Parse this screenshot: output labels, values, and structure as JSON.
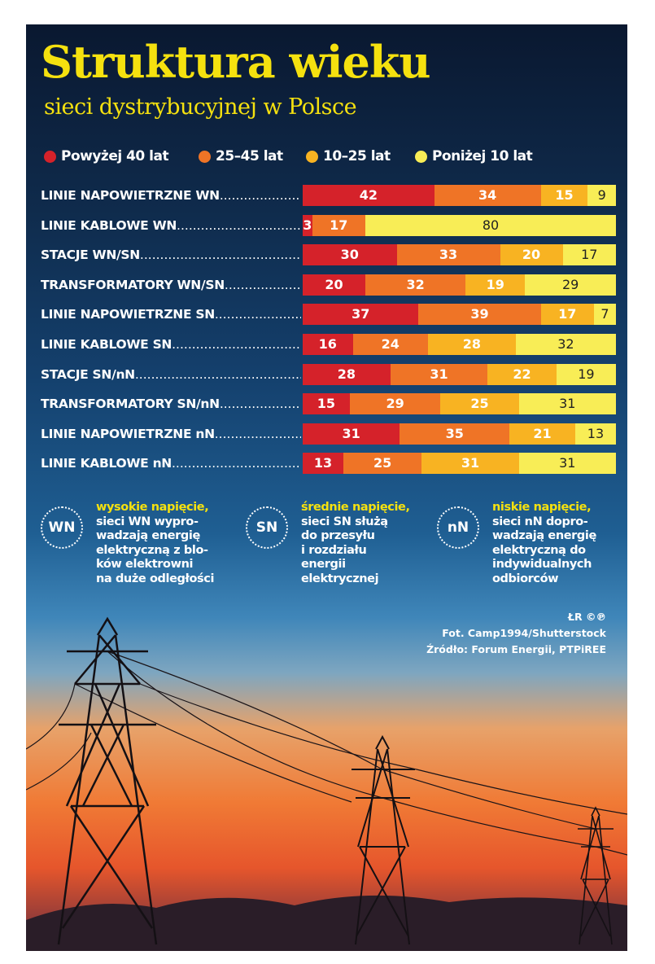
{
  "poster": {
    "title": "Struktura wieku",
    "subtitle": "sieci dystrybucyjnej w Polsce"
  },
  "chart_data": {
    "type": "bar",
    "stacked": true,
    "orientation": "horizontal",
    "unit": "%",
    "xlim": [
      0,
      100
    ],
    "legend_placement": "top",
    "title": "Struktura wieku",
    "subtitle": "sieci dystrybucyjnej w Polsce",
    "categories": [
      "LINIE NAPOWIETRZNE WN",
      "LINIE KABLOWE WN",
      "STACJE WN/SN",
      "TRANSFORMATORY WN/SN",
      "LINIE NAPOWIETRZNE SN",
      "LINIE KABLOWE SN",
      "STACJE SN/nN",
      "TRANSFORMATORY SN/nN",
      "LINIE NAPOWIETRZNE nN",
      "LINIE KABLOWE nN"
    ],
    "series": [
      {
        "name": "Powyżej 40 lat",
        "color": "#d5222a",
        "text_color": "#ffffff",
        "values": [
          42,
          3,
          30,
          20,
          37,
          16,
          28,
          15,
          31,
          13
        ]
      },
      {
        "name": "25–45 lat",
        "color": "#ef7426",
        "text_color": "#ffffff",
        "values": [
          34,
          17,
          33,
          32,
          39,
          24,
          31,
          29,
          35,
          25
        ]
      },
      {
        "name": "10–25 lat",
        "color": "#f8b322",
        "text_color": "#ffffff",
        "values": [
          15,
          0,
          20,
          19,
          17,
          28,
          22,
          25,
          21,
          31
        ]
      },
      {
        "name": "Poniżej 10 lat",
        "color": "#f8ed56",
        "text_color": "#222222",
        "values": [
          9,
          80,
          17,
          29,
          7,
          32,
          19,
          31,
          13,
          31
        ]
      }
    ]
  },
  "notes": [
    {
      "badge": "WN",
      "highlight": "wysokie napięcie,",
      "text": "sieci WN wypro-\nwadzają energię\nelektryczną z blo-\nków elektrowni\nna duże odległości"
    },
    {
      "badge": "SN",
      "highlight": "średnie napięcie,",
      "text": "sieci SN służą\ndo przesyłu\ni rozdziału\nenergii\nelektrycznej"
    },
    {
      "badge": "nN",
      "highlight": "niskie napięcie,",
      "text": "sieci nN dopro-\nwadzają energię\nelektryczną do\nindywidualnych\nodbiorców"
    }
  ],
  "credits": {
    "logo": "ŁR ©℗",
    "photo": "Fot. Camp1994/Shutterstock",
    "source": "Źródło: Forum Energii, PTPiREE"
  }
}
